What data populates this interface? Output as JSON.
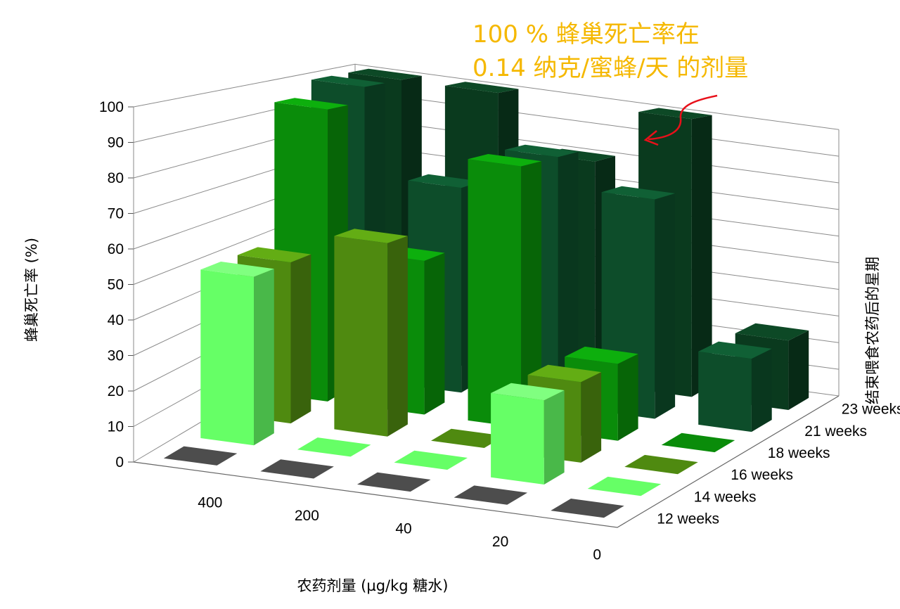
{
  "chart_data": {
    "type": "bar",
    "subtype": "3d-column",
    "ylabel": "蜂巢死亡率 (%)",
    "xlabel": "农药剂量 (µg/kg 糖水)",
    "zlabel": "结束喂食农药后的星期",
    "ylim": [
      0,
      100
    ],
    "yticks": [
      0,
      10,
      20,
      30,
      40,
      50,
      60,
      70,
      80,
      90,
      100
    ],
    "categories": [
      "400",
      "200",
      "40",
      "20",
      "0"
    ],
    "grid": true,
    "series": [
      {
        "name": "12 weeks",
        "color": "#4d4d4d",
        "values": [
          0,
          0,
          0,
          0,
          0
        ]
      },
      {
        "name": "14 weeks",
        "color": "#66ff66",
        "values": [
          50,
          0,
          0,
          25,
          0
        ]
      },
      {
        "name": "16 weeks",
        "color": "#4f8a10",
        "values": [
          50,
          60,
          0,
          25,
          0
        ]
      },
      {
        "name": "18 weeks",
        "color": "#0a8c0a",
        "values": [
          95,
          50,
          85,
          25,
          0
        ]
      },
      {
        "name": "21 weeks",
        "color": "#0d4d2a",
        "values": [
          100,
          70,
          85,
          75,
          25
        ]
      },
      {
        "name": "23 weeks",
        "color": "#0a3a1e",
        "values": [
          100,
          100,
          80,
          100,
          25
        ]
      }
    ],
    "annotation": {
      "line1": "100 % 蜂巢死亡率在",
      "line2": "0.14 纳克/蜜蜂/天 的剂量",
      "color": "#f5b800",
      "arrow_color": "#e8101a"
    }
  }
}
